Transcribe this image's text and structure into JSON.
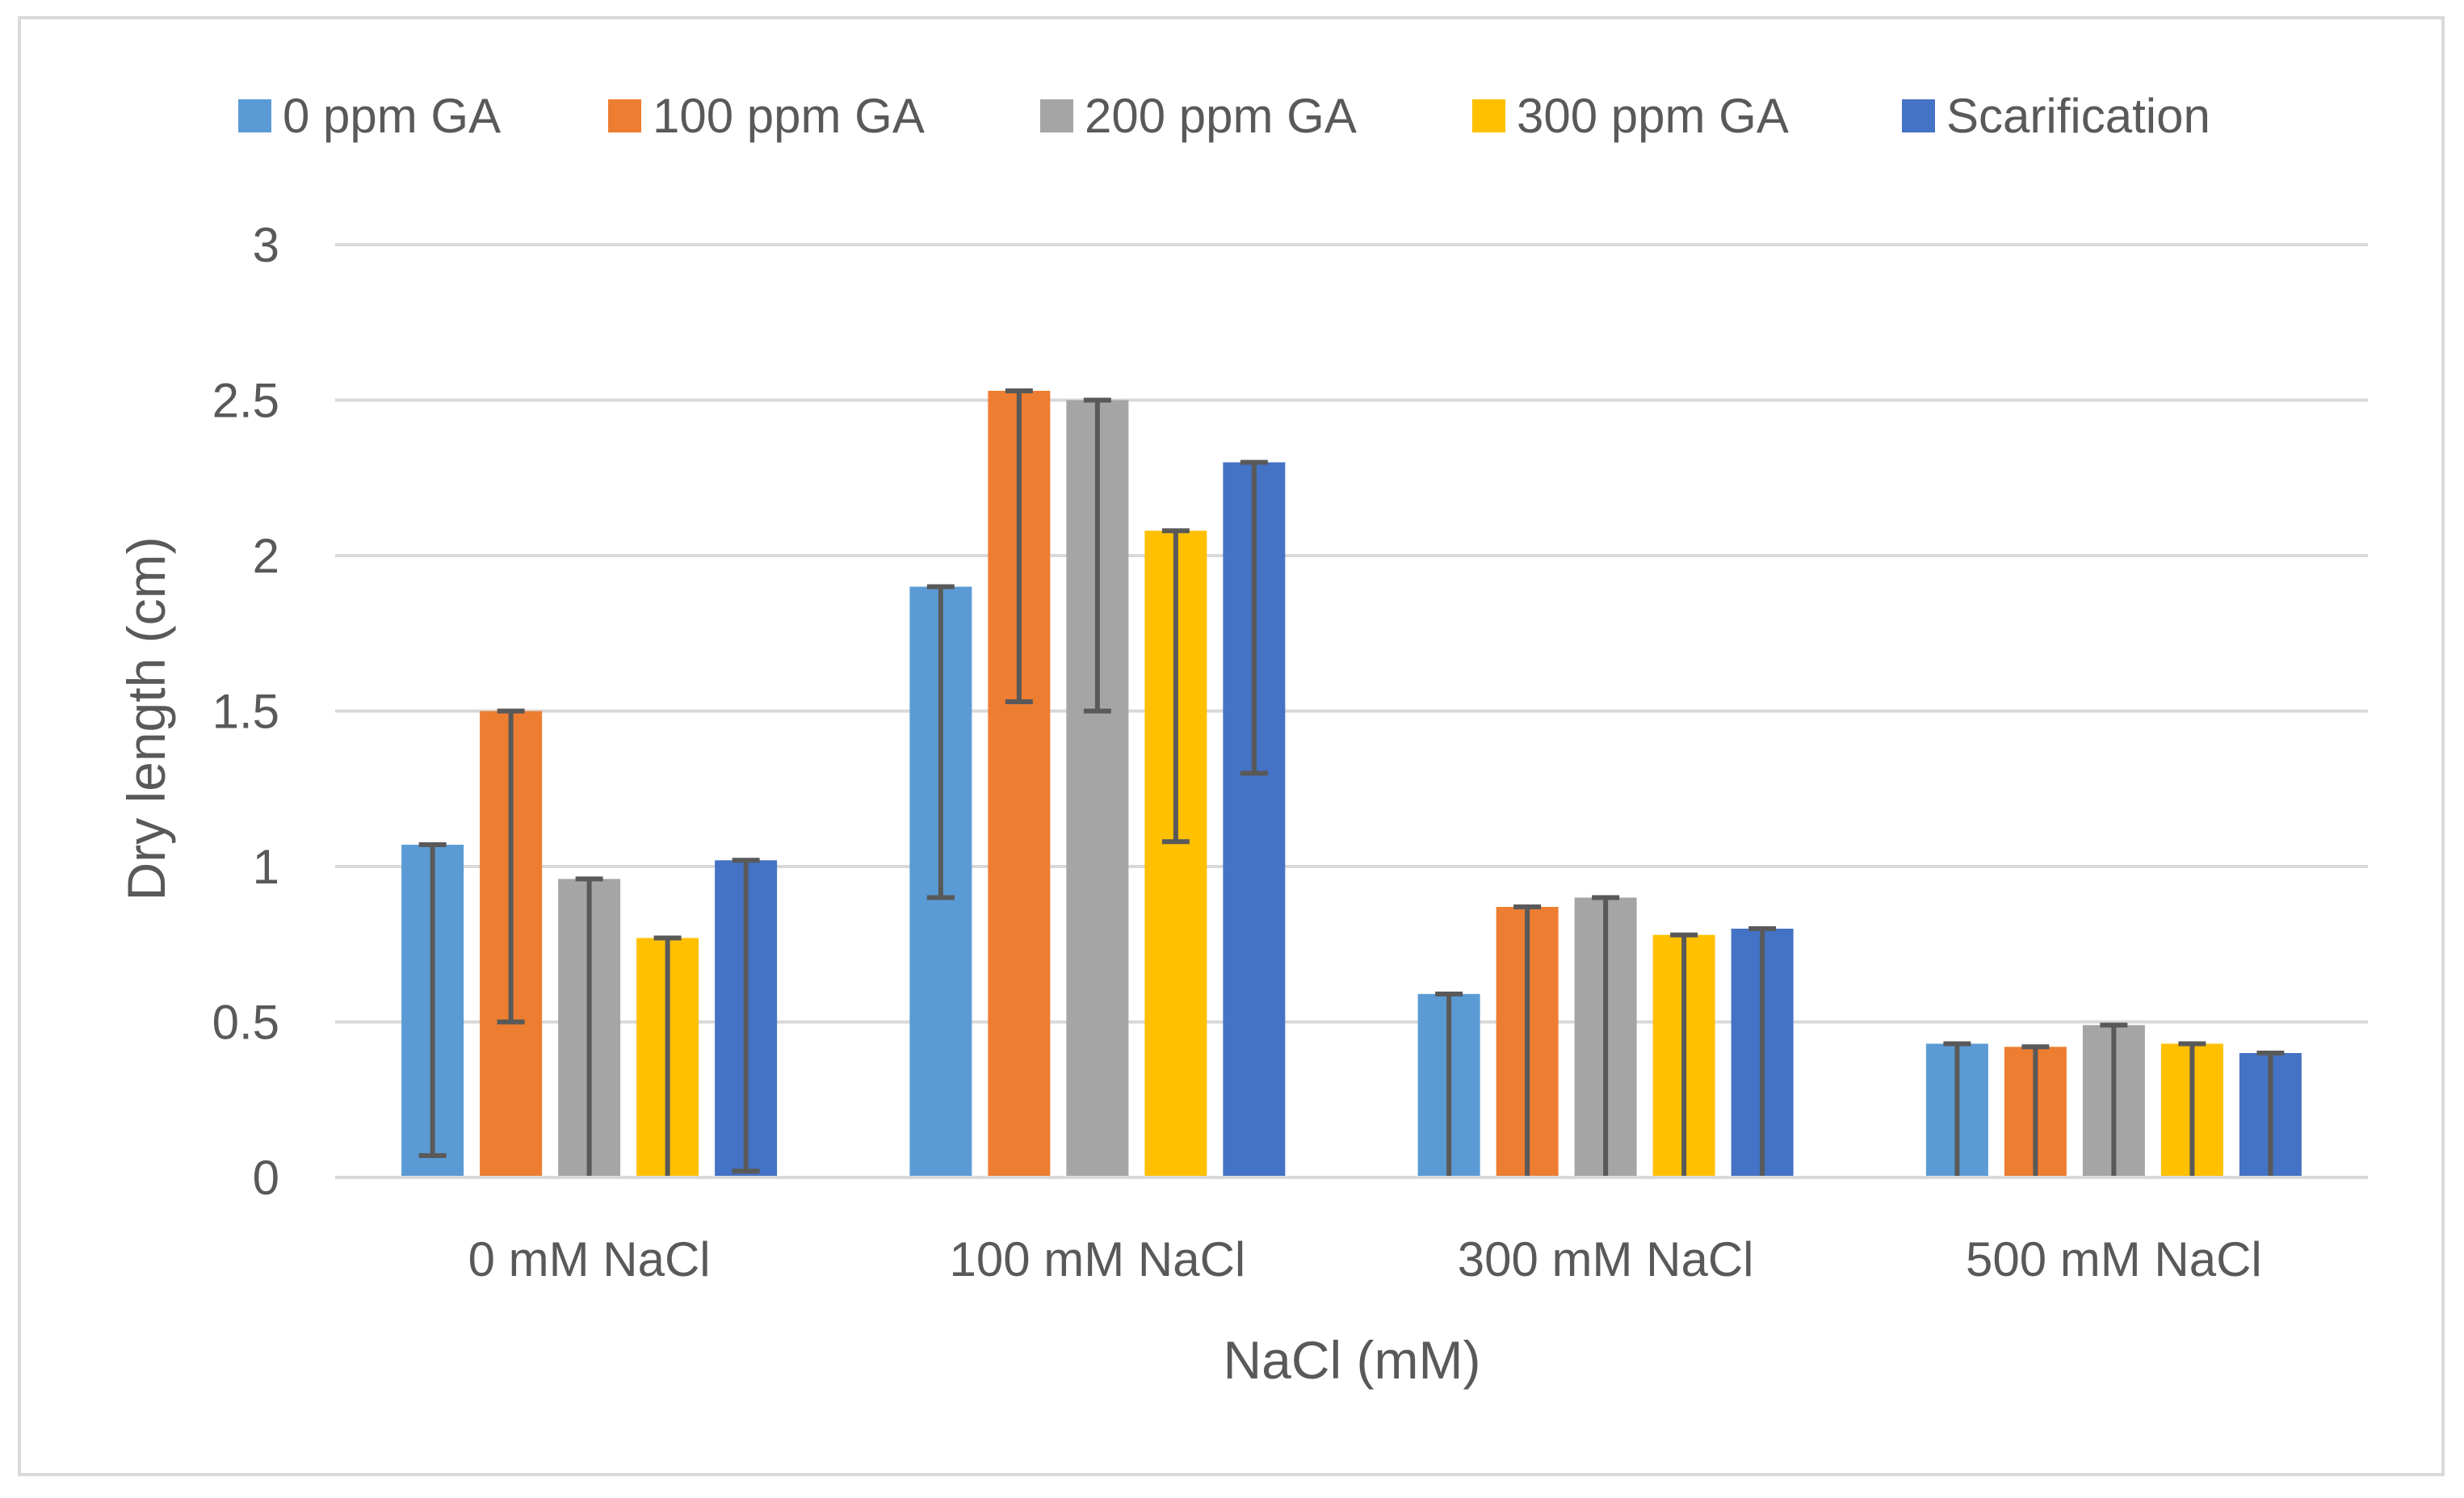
{
  "chart_data": {
    "type": "bar",
    "title": "",
    "xlabel": "NaCl (mM)",
    "ylabel": "Dry length (cm)",
    "ylim": [
      0,
      3
    ],
    "yticks": [
      0,
      0.5,
      1,
      1.5,
      2,
      2.5,
      3
    ],
    "ytick_labels": [
      "0",
      "0.5",
      "1",
      "1.5",
      "2",
      "2.5",
      "3"
    ],
    "grid": true,
    "legend_position": "top",
    "categories": [
      "0 mM NaCl",
      "100 mM NaCl",
      "300 mM NaCl",
      "500 mM NaCl"
    ],
    "series": [
      {
        "name": "0 ppm GA",
        "color": "#5B9BD5",
        "values": [
          1.07,
          1.9,
          0.59,
          0.43
        ],
        "error": [
          1.0,
          1.0,
          0.59,
          0.43
        ]
      },
      {
        "name": "100 ppm GA",
        "color": "#ED7D31",
        "values": [
          1.5,
          2.53,
          0.87,
          0.42
        ],
        "error": [
          1.0,
          1.0,
          0.87,
          0.42
        ]
      },
      {
        "name": "200 ppm GA",
        "color": "#A5A5A5",
        "values": [
          0.96,
          2.5,
          0.9,
          0.49
        ],
        "error": [
          0.96,
          1.0,
          0.9,
          0.49
        ]
      },
      {
        "name": "300 ppm GA",
        "color": "#FFC000",
        "values": [
          0.77,
          2.08,
          0.78,
          0.43
        ],
        "error": [
          0.77,
          1.0,
          0.78,
          0.43
        ]
      },
      {
        "name": "Scarification",
        "color": "#4472C4",
        "values": [
          1.02,
          2.3,
          0.8,
          0.4
        ],
        "error": [
          1.0,
          1.0,
          0.8,
          0.4
        ]
      }
    ]
  }
}
